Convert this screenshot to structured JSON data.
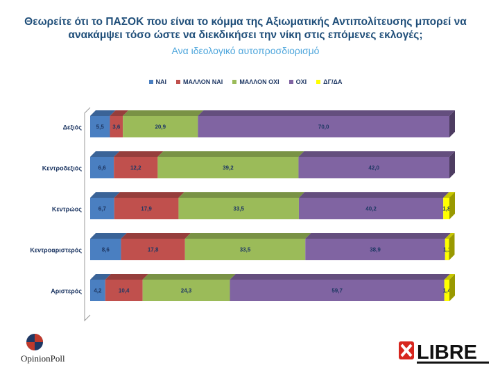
{
  "chart_data": {
    "type": "bar",
    "orientation": "horizontal",
    "stacked": true,
    "percent_stacked": true,
    "title_lines": [
      "Θεωρείτε ότι το ΠΑΣΟΚ που είναι το κόμμα της Αξιωματικής Αντιπολίτευσης μπορεί να",
      "ανακάμψει τόσο ώστε να διεκδικήσει την νίκη στις επόμενες εκλογές;"
    ],
    "subtitle": "Ανα ιδεολογικό αυτοπροσδιορισμό",
    "legend_position": "top",
    "grid": false,
    "categories": [
      "Δεξιός",
      "Κεντροδεξιός",
      "Κεντρώος",
      "Κεντροαριστερός",
      "Αριστερός"
    ],
    "series": [
      {
        "name": "ΝΑΙ",
        "color": "#4a7fc1",
        "values": [
          5.5,
          6.6,
          6.7,
          8.6,
          4.2
        ]
      },
      {
        "name": "ΜΑΛΛΟΝ ΝΑΙ",
        "color": "#c0504d",
        "values": [
          3.6,
          12.2,
          17.9,
          17.8,
          10.4
        ]
      },
      {
        "name": "ΜΑΛΛΟΝ ΟΧΙ",
        "color": "#9bbb59",
        "values": [
          20.9,
          39.2,
          33.5,
          33.5,
          24.3
        ]
      },
      {
        "name": "ΟΧΙ",
        "color": "#8064a2",
        "values": [
          70.0,
          42.0,
          40.2,
          38.9,
          59.7
        ]
      },
      {
        "name": "ΔΓ/ΔΑ",
        "color": "#ffff00",
        "values": [
          null,
          null,
          1.8,
          1.1,
          1.4
        ]
      }
    ],
    "value_labels": [
      [
        "5,5",
        "3,6",
        "20,9",
        "70,0",
        ""
      ],
      [
        "6,6",
        "12,2",
        "39,2",
        "42,0",
        ""
      ],
      [
        "6,7",
        "17,9",
        "33,5",
        "40,2",
        "1,8"
      ],
      [
        "8,6",
        "17,8",
        "33,5",
        "38,9",
        "1,1"
      ],
      [
        "4,2",
        "10,4",
        "24,3",
        "59,7",
        "1,4"
      ]
    ]
  },
  "branding": {
    "left_logo_text": "OpinionPoll",
    "right_logo_text": "LIBRE"
  }
}
